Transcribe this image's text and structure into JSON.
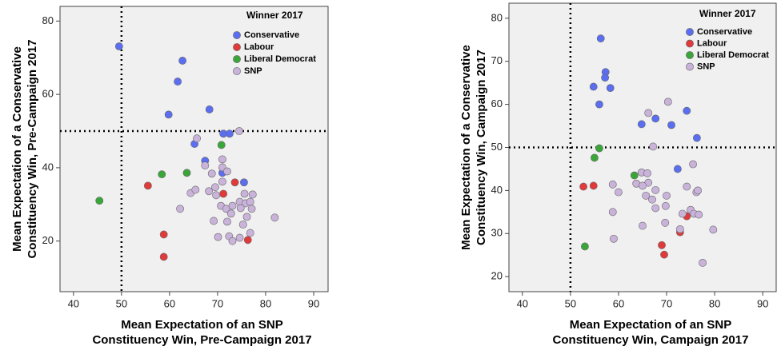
{
  "chart_data": [
    {
      "type": "scatter",
      "x_label": [
        "Mean Expectation of an SNP",
        "Constituency Win, Pre-Campaign 2017"
      ],
      "y_label": [
        "Mean Expectation of a Conservative",
        "Constituency Win, Pre-Campaign 2017"
      ],
      "legend_title": "Winner 2017",
      "xlim": [
        37.2,
        93
      ],
      "ylim": [
        6.2,
        84
      ],
      "xticks": [
        40,
        50,
        60,
        70,
        80,
        90
      ],
      "yticks": [
        20,
        40,
        60,
        80
      ],
      "reference_lines": {
        "x": 50,
        "y": 50
      },
      "series": [
        {
          "name": "Conservative",
          "color": "#5b6ef0",
          "x": [
            49.5,
            62.7,
            61.7,
            59.8,
            68.3,
            65.2,
            71.2,
            72.5,
            67.4,
            71,
            75.5
          ],
          "y": [
            73.1,
            69.2,
            63.5,
            54.5,
            55.9,
            46.5,
            49.3,
            49.3,
            41.9,
            38.6,
            36
          ]
        },
        {
          "name": "Labour",
          "color": "#e03a3a",
          "x": [
            55.5,
            58.8,
            58.8,
            71.2,
            73.6,
            76.3
          ],
          "y": [
            35.1,
            21.8,
            15.7,
            32.9,
            36,
            20.3
          ]
        },
        {
          "name": "Liberal Democrat",
          "color": "#3aa63a",
          "x": [
            45.4,
            58.4,
            63.6,
            70.8
          ],
          "y": [
            31,
            38.2,
            38.6,
            46.2
          ]
        },
        {
          "name": "SNP",
          "color": "#c9b3da",
          "x": [
            65.7,
            74.5,
            67.4,
            68.8,
            64.4,
            65.4,
            68.2,
            69.5,
            71,
            71,
            72,
            71,
            70.7,
            71.8,
            73.1,
            74.6,
            75.6,
            75.8,
            74.8,
            76.8,
            77.1,
            76.1,
            72.8,
            72,
            69.2,
            62.2,
            75.3,
            76.8,
            81.9,
            70.1,
            72.4,
            73.1,
            74.6,
            69.7,
            77.3
          ],
          "y": [
            48,
            50,
            40.6,
            38.4,
            33.1,
            34,
            33.6,
            34.7,
            42.3,
            40.1,
            39,
            36.2,
            29.6,
            28.8,
            29.6,
            30.7,
            32.9,
            30.3,
            29,
            30.7,
            28.8,
            26.6,
            27.5,
            25.3,
            25.5,
            28.8,
            24.5,
            22.2,
            26.4,
            21.1,
            21.3,
            20,
            20.9,
            32.5,
            32.7
          ]
        }
      ]
    },
    {
      "type": "scatter",
      "x_label": [
        "Mean Expectation of an SNP",
        "Constituency Win, Campaign 2017"
      ],
      "y_label": [
        "Mean Expectation of a Conservative",
        "Constituency Win, Campaign 2017"
      ],
      "legend_title": "Winner 2017",
      "xlim": [
        37.2,
        92.8
      ],
      "ylim": [
        16.5,
        83.5
      ],
      "xticks": [
        40,
        50,
        60,
        70,
        80,
        90
      ],
      "yticks": [
        20,
        30,
        40,
        50,
        60,
        70,
        80
      ],
      "reference_lines": {
        "x": 50,
        "y": 50
      },
      "series": [
        {
          "name": "Conservative",
          "color": "#5b6ef0",
          "x": [
            56.3,
            57.3,
            57.2,
            54.8,
            58.3,
            56,
            64.8,
            67.7,
            71,
            74.2,
            76.3,
            72.3
          ],
          "y": [
            75.3,
            67.5,
            66.2,
            64.1,
            63.8,
            60,
            55.4,
            56.7,
            55.2,
            58.5,
            52.2,
            45
          ]
        },
        {
          "name": "Labour",
          "color": "#e03a3a",
          "x": [
            52.7,
            54.8,
            69,
            69.5,
            74.2,
            72.8
          ],
          "y": [
            40.9,
            41.1,
            27.3,
            25.1,
            34,
            30.3
          ]
        },
        {
          "name": "Liberal Democrat",
          "color": "#3aa63a",
          "x": [
            56,
            55,
            63.3,
            53
          ],
          "y": [
            49.8,
            47.6,
            43.5,
            27
          ]
        },
        {
          "name": "SNP",
          "color": "#c9b3da",
          "x": [
            66.2,
            70.3,
            67.2,
            58.8,
            60,
            63.7,
            64.8,
            66,
            66.2,
            65,
            65.7,
            67.7,
            67,
            67.7,
            70,
            69.8,
            74.2,
            75.5,
            76.2,
            76.5,
            75,
            73.3,
            75.7,
            76.7,
            58.8,
            65,
            69.7,
            72.8,
            79.7,
            59,
            77.5
          ],
          "y": [
            58,
            60.6,
            50.2,
            41.4,
            39.6,
            41.6,
            44.2,
            44,
            41.8,
            41.1,
            38.8,
            40.1,
            37.9,
            35.9,
            38.8,
            36.4,
            40.9,
            46.1,
            39.6,
            40,
            35.5,
            34.6,
            34.6,
            34.4,
            35,
            31.8,
            32.5,
            31,
            30.9,
            28.8,
            23.2
          ]
        }
      ]
    }
  ]
}
